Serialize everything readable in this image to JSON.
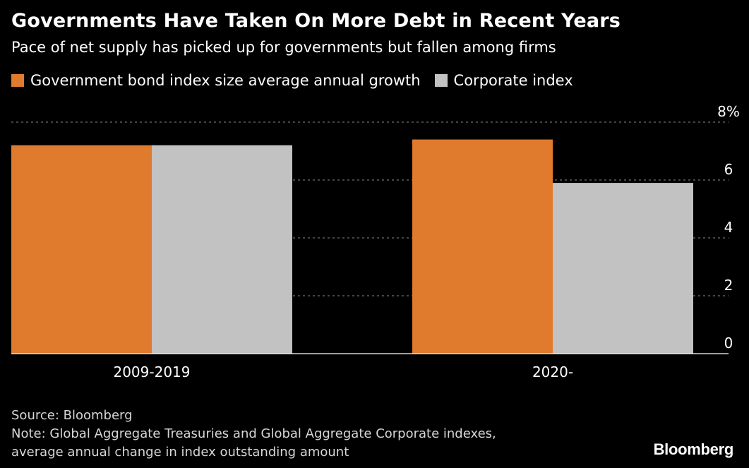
{
  "header": {
    "title": "Governments Have Taken On More Debt in Recent Years",
    "subtitle": "Pace of net supply has picked up for governments but fallen among firms"
  },
  "legend": [
    {
      "label": "Government bond index size average annual growth",
      "color": "#e07b2e"
    },
    {
      "label": "Corporate index",
      "color": "#c2c2c2"
    }
  ],
  "chart_data": {
    "type": "bar",
    "categories": [
      "2009-2019",
      "2020-"
    ],
    "series": [
      {
        "name": "Government bond index size average annual growth",
        "values": [
          7.2,
          7.4
        ],
        "color": "#e07b2e"
      },
      {
        "name": "Corporate index",
        "values": [
          7.2,
          5.9
        ],
        "color": "#c2c2c2"
      }
    ],
    "ylim": [
      0,
      8
    ],
    "yticks": [
      {
        "value": 0,
        "label": "0"
      },
      {
        "value": 2,
        "label": "2"
      },
      {
        "value": 4,
        "label": "4"
      },
      {
        "value": 6,
        "label": "6"
      },
      {
        "value": 8,
        "label": "8%"
      }
    ],
    "grid": true,
    "yaxis_side": "right",
    "legend_position": "top-left"
  },
  "footer": {
    "source": "Source: Bloomberg",
    "note_line1": "Note: Global Aggregate Treasuries and Global Aggregate Corporate indexes,",
    "note_line2": "average annual change in index outstanding amount"
  },
  "brand": "Bloomberg"
}
